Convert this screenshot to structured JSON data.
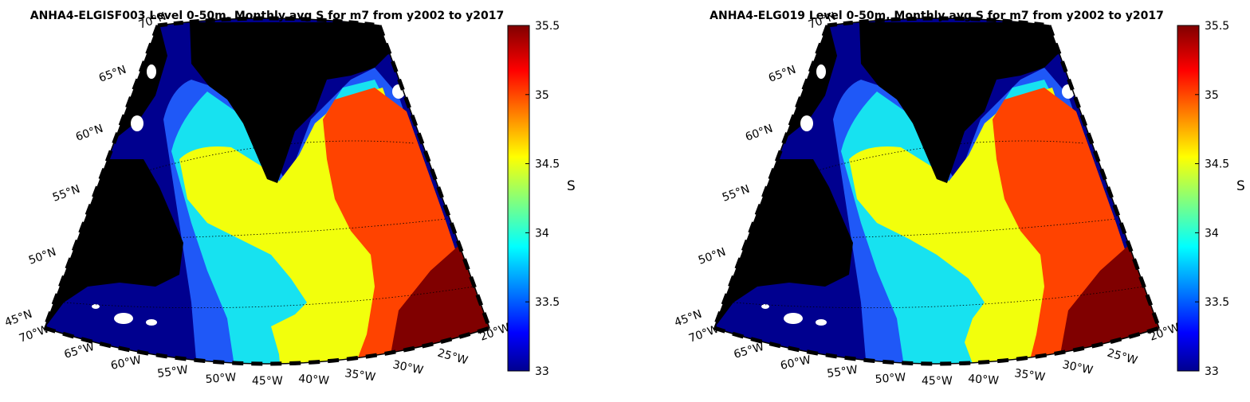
{
  "panels": [
    {
      "title": "ANHA4-ELGISF003 Level 0-50m, Monthly avg S for m7 from y2002 to y2017",
      "colorbar_label": "S"
    },
    {
      "title": "ANHA4-ELG019 Level 0-50m, Monthly avg S for m7 from y2002 to y2017",
      "colorbar_label": "S"
    }
  ],
  "map": {
    "projection": "conic",
    "lon_labels": [
      "70°W",
      "65°W",
      "60°W",
      "55°W",
      "50°W",
      "45°W",
      "40°W",
      "35°W",
      "30°W",
      "25°W",
      "20°W"
    ],
    "lat_labels": [
      "45°N",
      "50°N",
      "55°N",
      "60°N",
      "65°N",
      "70°N"
    ],
    "land_color": "#000000"
  },
  "colorbar": {
    "min": 33,
    "max": 35.5,
    "ticks": [
      "33",
      "33.5",
      "34",
      "34.5",
      "35",
      "35.5"
    ],
    "colormap": "jet"
  },
  "chart_data": [
    {
      "type": "heatmap",
      "title": "ANHA4-ELGISF003 Level 0-50m, Monthly avg S for m7 from y2002 to y2017",
      "variable": "S",
      "levels": [
        33,
        33.5,
        34,
        34.5,
        35,
        35.5
      ],
      "level_colors": [
        "#00008f",
        "#1f58f7",
        "#17e2f0",
        "#f2ff0c",
        "#ff4300",
        "#800000"
      ]
    },
    {
      "type": "heatmap",
      "title": "ANHA4-ELG019 Level 0-50m, Monthly avg S for m7 from y2002 to y2017",
      "variable": "S",
      "levels": [
        33,
        33.5,
        34,
        34.5,
        35,
        35.5
      ],
      "level_colors": [
        "#00008f",
        "#1f58f7",
        "#17e2f0",
        "#f2ff0c",
        "#ff4300",
        "#800000"
      ]
    }
  ]
}
